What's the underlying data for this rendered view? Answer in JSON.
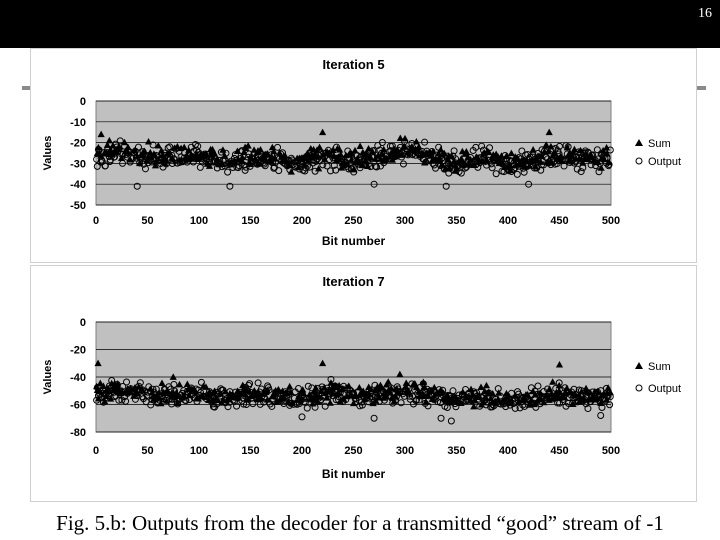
{
  "slide_number": "16",
  "caption": "Fig. 5.b: Outputs from the decoder for a transmitted “good” stream of -1",
  "chart_data": [
    {
      "type": "scatter",
      "title": "Iteration 5",
      "xlabel": "Bit number",
      "ylabel": "Values",
      "xlim": [
        0,
        500
      ],
      "ylim": [
        -50,
        0
      ],
      "xticks": [
        0,
        50,
        100,
        150,
        200,
        250,
        300,
        350,
        400,
        450,
        500
      ],
      "yticks": [
        0,
        -10,
        -20,
        -30,
        -40,
        -50
      ],
      "grid": true,
      "plot_background": "#c0c0c0",
      "legend": "right",
      "mean_profile": {
        "x": [
          0,
          25,
          60,
          100,
          125,
          150,
          175,
          200,
          225,
          250,
          275,
          300,
          325,
          350,
          375,
          400,
          425,
          450,
          475,
          500
        ],
        "y": [
          -27,
          -25,
          -28,
          -27,
          -29,
          -27,
          -28,
          -30,
          -27,
          -30,
          -27,
          -24,
          -27,
          -30,
          -28,
          -31,
          -29,
          -27,
          -29,
          -28
        ]
      },
      "spread": 5,
      "n_points": 500,
      "extremes": {
        "Sum": [
          [
            5,
            -16
          ],
          [
            220,
            -15
          ],
          [
            440,
            -15
          ],
          [
            300,
            -18
          ],
          [
            13,
            -19
          ]
        ],
        "Output": [
          [
            130,
            -41
          ],
          [
            40,
            -41
          ],
          [
            340,
            -41
          ],
          [
            420,
            -40
          ],
          [
            270,
            -40
          ]
        ]
      },
      "series": [
        {
          "name": "Sum",
          "marker": "filled-triangle",
          "color": "#000000"
        },
        {
          "name": "Output",
          "marker": "open-circle",
          "color": "#000000"
        }
      ]
    },
    {
      "type": "scatter",
      "title": "Iteration 7",
      "xlabel": "Bit number",
      "ylabel": "Values",
      "xlim": [
        0,
        500
      ],
      "ylim": [
        -80,
        0
      ],
      "xticks": [
        0,
        50,
        100,
        150,
        200,
        250,
        300,
        350,
        400,
        450,
        500
      ],
      "yticks": [
        0,
        -20,
        -40,
        -60,
        -80
      ],
      "grid": true,
      "plot_background": "#c0c0c0",
      "legend": "right",
      "mean_profile": {
        "x": [
          0,
          25,
          60,
          100,
          125,
          150,
          175,
          200,
          225,
          250,
          275,
          300,
          325,
          350,
          375,
          400,
          425,
          450,
          475,
          500
        ],
        "y": [
          -52,
          -50,
          -54,
          -53,
          -55,
          -52,
          -54,
          -56,
          -51,
          -55,
          -52,
          -52,
          -54,
          -57,
          -55,
          -58,
          -56,
          -53,
          -56,
          -55
        ]
      },
      "spread": 7,
      "n_points": 500,
      "extremes": {
        "Sum": [
          [
            2,
            -30
          ],
          [
            220,
            -30
          ],
          [
            450,
            -31
          ],
          [
            75,
            -40
          ],
          [
            295,
            -38
          ]
        ],
        "Output": [
          [
            200,
            -69
          ],
          [
            270,
            -70
          ],
          [
            335,
            -70
          ],
          [
            490,
            -68
          ],
          [
            345,
            -72
          ]
        ]
      },
      "series": [
        {
          "name": "Sum",
          "marker": "filled-triangle",
          "color": "#000000"
        },
        {
          "name": "Output",
          "marker": "open-circle",
          "color": "#000000"
        }
      ]
    }
  ]
}
